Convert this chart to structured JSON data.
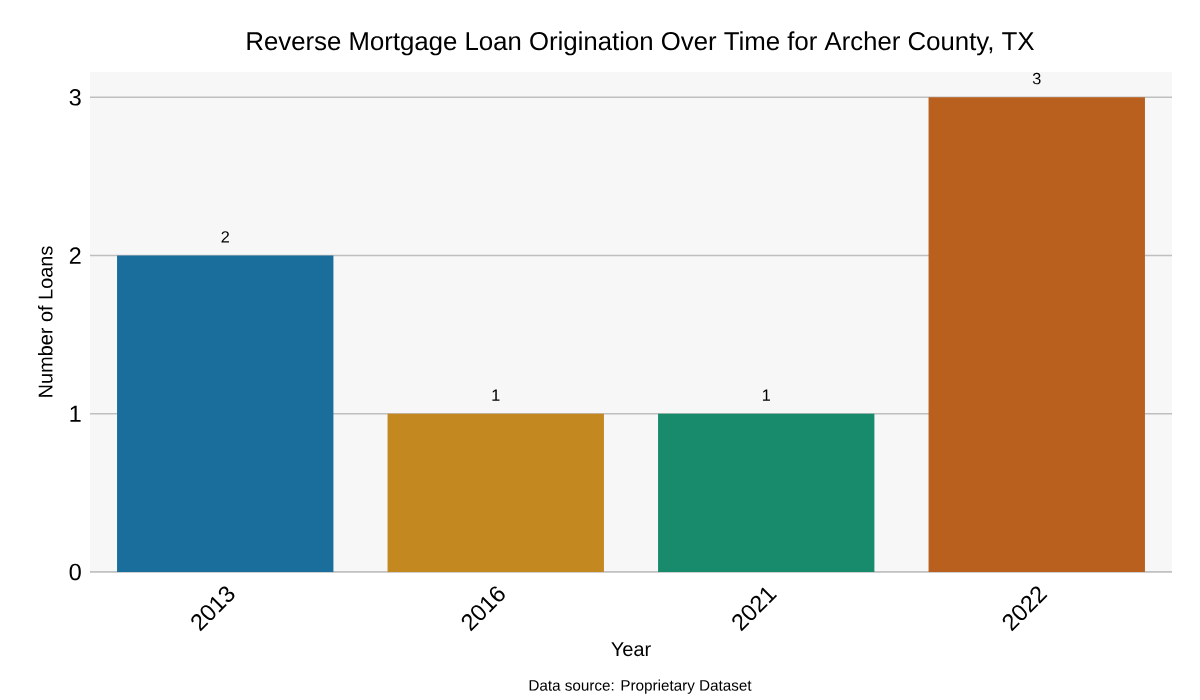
{
  "chart_data": {
    "type": "bar",
    "title": "Reverse Mortgage Loan Origination Over Time for Archer County, TX",
    "xlabel": "Year",
    "ylabel": "Number of Loans",
    "categories": [
      "2013",
      "2016",
      "2021",
      "2022"
    ],
    "values": [
      2,
      1,
      1,
      3
    ],
    "colors": [
      "#1a6e9c",
      "#c48820",
      "#178b6b",
      "#b9601e"
    ],
    "ylim": [
      0,
      3.16
    ],
    "yticks": [
      0,
      1,
      2,
      3
    ],
    "grid": "y",
    "data_labels": true,
    "annotations": [
      "Data source: Proprietary Dataset"
    ]
  }
}
